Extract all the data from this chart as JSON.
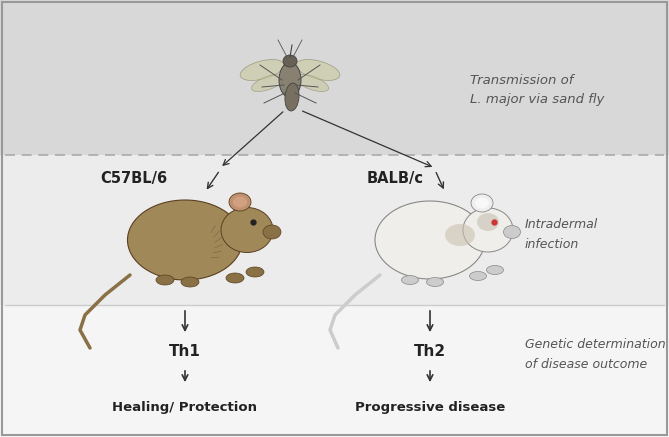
{
  "fig_width": 6.69,
  "fig_height": 4.37,
  "dpi": 100,
  "bg_top": "#d0d0d0",
  "bg_mid": "#e8e8e8",
  "bg_bot": "#f2f2f2",
  "border_color": "#bbbbbb",
  "top_text1": "Transmission of",
  "top_text2": "L. major via sand fly",
  "mid_label_left": "C57BL/6",
  "mid_label_right": "BALB/c",
  "mid_right_text1": "Intradermal",
  "mid_right_text2": "infection",
  "th1_label": "Th1",
  "th2_label": "Th2",
  "bottom_right_text1": "Genetic determination",
  "bottom_right_text2": "of disease outcome",
  "outcome_left": "Healing/ Protection",
  "outcome_right": "Progressive disease",
  "text_color": "#555555",
  "bold_color": "#222222",
  "arrow_color": "#333333",
  "dashed_line_color": "#aaaaaa",
  "solid_line_color": "#cccccc",
  "mouse_brown_body": "#a08858",
  "mouse_brown_mid": "#8a7045",
  "mouse_brown_dark": "#5a4020",
  "mouse_white_body": "#f0eeea",
  "mouse_white_mid": "#cccccc",
  "mouse_white_dark": "#888888",
  "fly_body": "#707070",
  "fly_wing": "#ccccaa",
  "fly_leg": "#555555"
}
